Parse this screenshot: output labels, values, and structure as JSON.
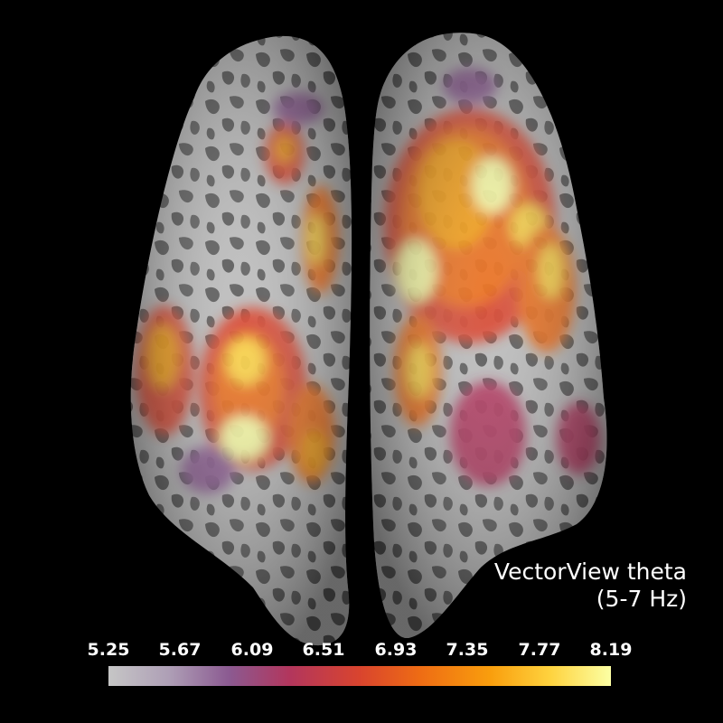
{
  "scene": {
    "background": "#000000",
    "content": "brain",
    "hemispheres": [
      "left",
      "right"
    ]
  },
  "title": {
    "line1": "VectorView theta",
    "line2": "(5-7 Hz)"
  },
  "colorbar": {
    "colormap": "inferno",
    "ticks": [
      "5.25",
      "5.67",
      "6.09",
      "6.51",
      "6.93",
      "7.35",
      "7.77",
      "8.19"
    ],
    "min": 5.25,
    "max": 8.19
  },
  "colors": {
    "cortex_light": "#bdbdbd",
    "cortex_dark": "#5c5c5c",
    "activation_low": "#8b5a91",
    "activation_mid": "#ee6c14",
    "activation_high": "#fcffa4"
  }
}
